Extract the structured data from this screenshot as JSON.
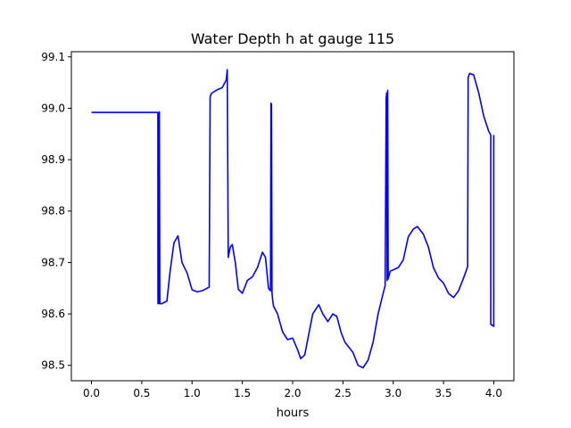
{
  "chart_data": {
    "type": "line",
    "title": "Water Depth h at gauge 115",
    "xlabel": "hours",
    "ylabel": "",
    "xlim": [
      -0.2,
      4.2
    ],
    "ylim": [
      98.47,
      99.11
    ],
    "x_ticks": [
      0.0,
      0.5,
      1.0,
      1.5,
      2.0,
      2.5,
      3.0,
      3.5,
      4.0
    ],
    "x_tick_labels": [
      "0.0",
      "0.5",
      "1.0",
      "1.5",
      "2.0",
      "2.5",
      "3.0",
      "3.5",
      "4.0"
    ],
    "y_ticks": [
      98.5,
      98.6,
      98.7,
      98.8,
      98.9,
      99.0,
      99.1
    ],
    "y_tick_labels": [
      "98.5",
      "98.6",
      "98.7",
      "98.8",
      "98.9",
      "99.0",
      "99.1"
    ],
    "grid": false,
    "legend": "none",
    "series": [
      {
        "color": "#0000ff",
        "x": [
          0.0,
          0.3,
          0.66,
          0.661,
          0.665,
          0.67,
          0.675,
          0.68,
          0.7,
          0.75,
          0.78,
          0.82,
          0.86,
          0.9,
          0.95,
          1.0,
          1.05,
          1.1,
          1.17,
          1.18,
          1.19,
          1.2,
          1.25,
          1.3,
          1.34,
          1.35,
          1.36,
          1.37,
          1.38,
          1.4,
          1.43,
          1.46,
          1.5,
          1.55,
          1.6,
          1.65,
          1.7,
          1.73,
          1.76,
          1.78,
          1.785,
          1.79,
          1.795,
          1.8,
          1.81,
          1.85,
          1.9,
          1.95,
          2.0,
          2.05,
          2.08,
          2.12,
          2.16,
          2.2,
          2.26,
          2.3,
          2.35,
          2.4,
          2.44,
          2.48,
          2.52,
          2.6,
          2.65,
          2.7,
          2.75,
          2.8,
          2.85,
          2.9,
          2.92,
          2.93,
          2.935,
          2.94,
          2.945,
          2.95,
          2.97,
          3.05,
          3.1,
          3.15,
          3.2,
          3.24,
          3.3,
          3.35,
          3.4,
          3.45,
          3.5,
          3.55,
          3.6,
          3.65,
          3.7,
          3.74,
          3.745,
          3.76,
          3.8,
          3.85,
          3.9,
          3.95,
          3.97,
          3.97,
          3.99,
          4.0,
          4.0
        ],
        "y": [
          98.992,
          98.992,
          98.992,
          98.62,
          98.99,
          98.62,
          98.993,
          98.62,
          98.62,
          98.625,
          98.68,
          98.738,
          98.752,
          98.7,
          98.68,
          98.647,
          98.643,
          98.645,
          98.652,
          99.022,
          99.028,
          99.03,
          99.036,
          99.04,
          99.055,
          99.075,
          98.71,
          98.72,
          98.73,
          98.735,
          98.7,
          98.648,
          98.64,
          98.665,
          98.672,
          98.69,
          98.72,
          98.71,
          98.65,
          98.645,
          99.01,
          99.007,
          98.64,
          98.63,
          98.615,
          98.6,
          98.565,
          98.55,
          98.553,
          98.53,
          98.513,
          98.52,
          98.56,
          98.6,
          98.618,
          98.6,
          98.585,
          98.6,
          98.595,
          98.565,
          98.545,
          98.525,
          98.5,
          98.495,
          98.51,
          98.545,
          98.6,
          98.64,
          98.655,
          99.02,
          99.03,
          98.665,
          99.035,
          98.668,
          98.683,
          98.69,
          98.705,
          98.75,
          98.765,
          98.77,
          98.755,
          98.73,
          98.69,
          98.67,
          98.66,
          98.64,
          98.632,
          98.645,
          98.67,
          98.692,
          99.06,
          99.068,
          99.065,
          99.03,
          98.985,
          98.955,
          98.948,
          98.58,
          98.577,
          98.576,
          98.948
        ]
      }
    ]
  }
}
